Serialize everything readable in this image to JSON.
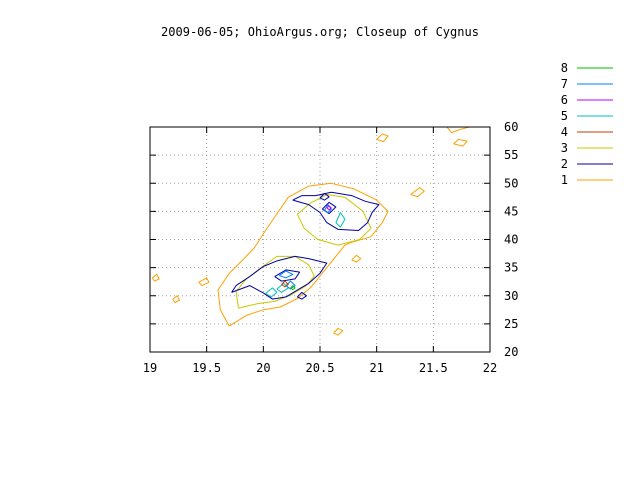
{
  "chart_data": {
    "type": "contour",
    "title": "2009-06-05; OhioArgus.org; Closeup of Cygnus",
    "xlabel": "",
    "ylabel": "",
    "xlim": [
      19,
      22
    ],
    "ylim": [
      20,
      60
    ],
    "x_ticks": [
      19,
      19.5,
      20,
      20.5,
      21,
      21.5,
      22
    ],
    "x_tick_labels": [
      "19",
      "19.5",
      "20",
      "20.5",
      "21",
      "21.5",
      "22"
    ],
    "y_ticks": [
      20,
      25,
      30,
      35,
      40,
      45,
      50,
      55,
      60
    ],
    "y_tick_labels": [
      "20",
      "25",
      "30",
      "35",
      "40",
      "45",
      "50",
      "55",
      "60"
    ],
    "grid": true,
    "y_axis_side": "right",
    "legend_position": "top-right",
    "levels": [
      {
        "name": "8",
        "color": "#00c000"
      },
      {
        "name": "7",
        "color": "#0080ff"
      },
      {
        "name": "6",
        "color": "#c000ff"
      },
      {
        "name": "5",
        "color": "#00c0c0"
      },
      {
        "name": "4",
        "color": "#c04000"
      },
      {
        "name": "3",
        "color": "#c8c800"
      },
      {
        "name": "2",
        "color": "#0000a0"
      },
      {
        "name": "1",
        "color": "#ffa000"
      }
    ],
    "contours": [
      {
        "level": "1",
        "points": [
          [
            19.7,
            24.6
          ],
          [
            19.85,
            26.5
          ],
          [
            20.0,
            27.5
          ],
          [
            20.15,
            28.0
          ],
          [
            20.3,
            29.5
          ],
          [
            20.42,
            31.5
          ],
          [
            20.5,
            33.5
          ],
          [
            20.62,
            36.5
          ],
          [
            20.72,
            39.0
          ],
          [
            20.78,
            39.5
          ],
          [
            20.95,
            40.5
          ],
          [
            21.05,
            43.0
          ],
          [
            21.1,
            45.0
          ],
          [
            21.0,
            47.0
          ],
          [
            20.8,
            49.0
          ],
          [
            20.6,
            50.0
          ],
          [
            20.4,
            49.5
          ],
          [
            20.22,
            47.5
          ],
          [
            20.1,
            44.0
          ],
          [
            20.0,
            41.0
          ],
          [
            19.92,
            38.5
          ],
          [
            19.8,
            36.0
          ],
          [
            19.7,
            34.0
          ],
          [
            19.6,
            31.0
          ],
          [
            19.62,
            27.5
          ],
          [
            19.7,
            24.6
          ]
        ]
      },
      {
        "level": "1",
        "points": [
          [
            19.02,
            33.2
          ],
          [
            19.06,
            33.8
          ],
          [
            19.08,
            33.0
          ],
          [
            19.04,
            32.6
          ],
          [
            19.02,
            33.2
          ]
        ]
      },
      {
        "level": "1",
        "points": [
          [
            19.2,
            29.4
          ],
          [
            19.24,
            30.0
          ],
          [
            19.26,
            29.2
          ],
          [
            19.22,
            28.8
          ],
          [
            19.2,
            29.4
          ]
        ]
      },
      {
        "level": "1",
        "points": [
          [
            19.43,
            32.4
          ],
          [
            19.5,
            33.2
          ],
          [
            19.52,
            32.4
          ],
          [
            19.46,
            31.8
          ],
          [
            19.43,
            32.4
          ]
        ]
      },
      {
        "level": "1",
        "points": [
          [
            20.62,
            23.4
          ],
          [
            20.66,
            24.2
          ],
          [
            20.7,
            23.8
          ],
          [
            20.66,
            23.0
          ],
          [
            20.62,
            23.4
          ]
        ]
      },
      {
        "level": "1",
        "points": [
          [
            20.78,
            36.4
          ],
          [
            20.82,
            37.2
          ],
          [
            20.86,
            36.6
          ],
          [
            20.82,
            36.0
          ],
          [
            20.78,
            36.4
          ]
        ]
      },
      {
        "level": "1",
        "points": [
          [
            21.0,
            57.8
          ],
          [
            21.05,
            58.8
          ],
          [
            21.1,
            58.4
          ],
          [
            21.06,
            57.4
          ],
          [
            21.0,
            57.8
          ]
        ]
      },
      {
        "level": "1",
        "points": [
          [
            21.3,
            48.0
          ],
          [
            21.38,
            49.2
          ],
          [
            21.42,
            48.6
          ],
          [
            21.36,
            47.6
          ],
          [
            21.3,
            48.0
          ]
        ]
      },
      {
        "level": "1",
        "points": [
          [
            21.62,
            60.0
          ],
          [
            21.66,
            59.0
          ],
          [
            21.74,
            59.6
          ],
          [
            21.82,
            60.0
          ]
        ]
      },
      {
        "level": "1",
        "points": [
          [
            21.68,
            57.0
          ],
          [
            21.72,
            57.8
          ],
          [
            21.8,
            57.5
          ],
          [
            21.76,
            56.6
          ],
          [
            21.68,
            57.0
          ]
        ]
      },
      {
        "level": "3",
        "points": [
          [
            19.78,
            27.8
          ],
          [
            19.95,
            28.6
          ],
          [
            20.1,
            29.0
          ],
          [
            20.25,
            30.2
          ],
          [
            20.38,
            31.8
          ],
          [
            20.45,
            33.5
          ],
          [
            20.4,
            35.5
          ],
          [
            20.28,
            37.0
          ],
          [
            20.12,
            37.0
          ],
          [
            19.98,
            35.0
          ],
          [
            19.85,
            33.0
          ],
          [
            19.76,
            30.8
          ],
          [
            19.78,
            27.8
          ]
        ]
      },
      {
        "level": "3",
        "points": [
          [
            20.3,
            44.5
          ],
          [
            20.42,
            46.5
          ],
          [
            20.56,
            48.0
          ],
          [
            20.72,
            47.5
          ],
          [
            20.88,
            45.0
          ],
          [
            20.95,
            42.0
          ],
          [
            20.85,
            40.0
          ],
          [
            20.66,
            39.0
          ],
          [
            20.48,
            40.0
          ],
          [
            20.36,
            42.0
          ],
          [
            20.3,
            44.5
          ]
        ]
      },
      {
        "level": "2",
        "points": [
          [
            19.72,
            30.6
          ],
          [
            19.88,
            31.8
          ],
          [
            20.0,
            30.5
          ],
          [
            20.08,
            29.4
          ],
          [
            20.2,
            29.8
          ],
          [
            20.3,
            31.0
          ],
          [
            20.4,
            32.2
          ],
          [
            20.5,
            34.0
          ],
          [
            20.56,
            35.8
          ],
          [
            20.4,
            36.6
          ],
          [
            20.28,
            37.0
          ],
          [
            20.12,
            36.2
          ],
          [
            20.0,
            35.2
          ],
          [
            19.88,
            33.4
          ],
          [
            19.76,
            31.8
          ],
          [
            19.72,
            30.6
          ]
        ]
      },
      {
        "level": "2",
        "points": [
          [
            20.26,
            47.0
          ],
          [
            20.4,
            46.2
          ],
          [
            20.5,
            44.8
          ],
          [
            20.56,
            43.0
          ],
          [
            20.66,
            41.8
          ],
          [
            20.84,
            41.6
          ],
          [
            20.92,
            43.0
          ],
          [
            20.96,
            44.8
          ],
          [
            21.02,
            46.2
          ],
          [
            20.9,
            46.8
          ],
          [
            20.78,
            47.8
          ],
          [
            20.6,
            48.4
          ],
          [
            20.46,
            47.8
          ],
          [
            20.34,
            47.8
          ],
          [
            20.26,
            47.0
          ]
        ]
      },
      {
        "level": "2",
        "points": [
          [
            20.5,
            47.4
          ],
          [
            20.54,
            48.2
          ],
          [
            20.58,
            47.6
          ],
          [
            20.54,
            47.0
          ],
          [
            20.5,
            47.4
          ]
        ]
      },
      {
        "level": "2",
        "points": [
          [
            20.3,
            29.8
          ],
          [
            20.34,
            30.6
          ],
          [
            20.38,
            30.0
          ],
          [
            20.34,
            29.4
          ],
          [
            20.3,
            29.8
          ]
        ]
      },
      {
        "level": "2",
        "points": [
          [
            20.1,
            33.4
          ],
          [
            20.2,
            34.6
          ],
          [
            20.32,
            34.2
          ],
          [
            20.28,
            33.0
          ],
          [
            20.16,
            32.6
          ],
          [
            20.1,
            33.4
          ]
        ]
      },
      {
        "level": "2",
        "points": [
          [
            20.52,
            45.4
          ],
          [
            20.58,
            46.6
          ],
          [
            20.64,
            45.8
          ],
          [
            20.58,
            44.6
          ],
          [
            20.52,
            45.4
          ]
        ]
      },
      {
        "level": "5",
        "points": [
          [
            20.02,
            30.4
          ],
          [
            20.08,
            31.4
          ],
          [
            20.12,
            30.6
          ],
          [
            20.07,
            29.8
          ],
          [
            20.02,
            30.4
          ]
        ]
      },
      {
        "level": "5",
        "points": [
          [
            20.12,
            31.2
          ],
          [
            20.18,
            32.2
          ],
          [
            20.22,
            31.4
          ],
          [
            20.16,
            30.6
          ],
          [
            20.12,
            31.2
          ]
        ]
      },
      {
        "level": "5",
        "points": [
          [
            20.64,
            43.0
          ],
          [
            20.68,
            44.8
          ],
          [
            20.72,
            43.6
          ],
          [
            20.68,
            42.2
          ],
          [
            20.64,
            43.0
          ]
        ]
      },
      {
        "level": "7",
        "points": [
          [
            20.2,
            31.8
          ],
          [
            20.24,
            32.6
          ],
          [
            20.28,
            31.8
          ],
          [
            20.24,
            31.2
          ],
          [
            20.2,
            31.8
          ]
        ]
      },
      {
        "level": "7",
        "points": [
          [
            20.14,
            33.6
          ],
          [
            20.2,
            34.4
          ],
          [
            20.26,
            33.8
          ],
          [
            20.2,
            33.2
          ],
          [
            20.14,
            33.6
          ]
        ]
      },
      {
        "level": "7",
        "points": [
          [
            20.54,
            45.2
          ],
          [
            20.57,
            46.2
          ],
          [
            20.6,
            45.4
          ],
          [
            20.57,
            44.8
          ],
          [
            20.54,
            45.2
          ]
        ]
      },
      {
        "level": "4",
        "points": [
          [
            20.16,
            32.0
          ],
          [
            20.19,
            32.6
          ],
          [
            20.22,
            32.0
          ],
          [
            20.19,
            31.6
          ],
          [
            20.16,
            32.0
          ]
        ]
      },
      {
        "level": "6",
        "points": [
          [
            20.56,
            45.6
          ],
          [
            20.58,
            46.0
          ],
          [
            20.6,
            45.6
          ],
          [
            20.58,
            45.3
          ],
          [
            20.56,
            45.6
          ]
        ]
      },
      {
        "level": "8",
        "points": [
          [
            20.24,
            31.4
          ],
          [
            20.26,
            31.8
          ],
          [
            20.28,
            31.4
          ],
          [
            20.26,
            31.1
          ],
          [
            20.24,
            31.4
          ]
        ]
      }
    ]
  }
}
